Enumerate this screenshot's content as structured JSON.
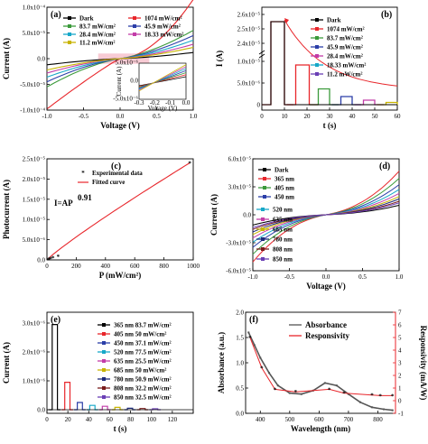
{
  "chart_data": [
    {
      "panel": "(a)",
      "type": "line",
      "xlabel": "Voltage (V)",
      "ylabel": "Current (A)",
      "xlim": [
        -1.0,
        1.0
      ],
      "ylim": [
        -0.0001,
        0.0001
      ],
      "xticks": [
        "-1.0",
        "-0.5",
        "0.0",
        "0.5",
        "1.0"
      ],
      "yticks": [
        "-1.0x10⁻⁴",
        "-5.0x10⁻⁵",
        "0.0",
        "5.0x10⁻⁵",
        "1.0x10⁻⁴"
      ],
      "legend": "top-left",
      "series": [
        {
          "name": "Dark",
          "color": "#000000",
          "x": [
            -1,
            -0.5,
            0,
            0.5,
            1
          ],
          "y": [
            -1.2e-05,
            -4e-06,
            0,
            4e-06,
            1.2e-05
          ]
        },
        {
          "name": "1074 mW/cm²",
          "color": "#e8262b",
          "x": [
            -1,
            -0.5,
            0,
            0.5,
            1
          ],
          "y": [
            -0.0001,
            -5e-05,
            -5e-06,
            3.5e-05,
            0.000115
          ]
        },
        {
          "name": "83.7 mW/cm²",
          "color": "#3b9a3b",
          "x": [
            -1,
            -0.5,
            0,
            0.5,
            1
          ],
          "y": [
            -5.5e-05,
            -2.2e-05,
            -1e-06,
            2e-05,
            5.5e-05
          ]
        },
        {
          "name": "45.9 mW/cm²",
          "color": "#2b3ea8",
          "x": [
            -1,
            -0.5,
            0,
            0.5,
            1
          ],
          "y": [
            -4.5e-05,
            -1.8e-05,
            -1e-06,
            1.6e-05,
            4.5e-05
          ]
        },
        {
          "name": "28.4 mW/cm²",
          "color": "#17a8c8",
          "x": [
            -1,
            -0.5,
            0,
            0.5,
            1
          ],
          "y": [
            -3.6e-05,
            -1.4e-05,
            -5e-07,
            1.3e-05,
            3.6e-05
          ]
        },
        {
          "name": "18.33 mW/cm²",
          "color": "#c23ca8",
          "x": [
            -1,
            -0.5,
            0,
            0.5,
            1
          ],
          "y": [
            -2.8e-05,
            -1.1e-05,
            -5e-07,
            1e-05,
            2.8e-05
          ]
        },
        {
          "name": "11.2 mW/cm²",
          "color": "#c8b400",
          "x": [
            -1,
            -0.5,
            0,
            0.5,
            1
          ],
          "y": [
            -2.2e-05,
            -8e-06,
            0,
            8e-06,
            2.2e-05
          ]
        }
      ],
      "inset": {
        "xlabel": "Voltage (V)",
        "ylabel": "Current (A)",
        "xticks": [
          "-0.3",
          "-0.2",
          "-0.1",
          "0.0"
        ],
        "yticks": [
          "-5.0x10⁻⁶",
          "0.0",
          "5.0x10⁻⁶"
        ]
      }
    },
    {
      "panel": "(b)",
      "type": "line",
      "xlabel": "t (s)",
      "ylabel": "I (A)",
      "xlim": [
        0,
        60
      ],
      "xticks": [
        "0",
        "10",
        "20",
        "30",
        "40",
        "50",
        "60"
      ],
      "yticks": [
        "0",
        "5.0x10⁻⁶",
        "1.0x10⁻⁵",
        "2.4x10⁻⁵",
        "2.5x10⁻⁵",
        "2.6x10⁻⁵"
      ],
      "legend": "top-right",
      "series": [
        {
          "name": "Dark",
          "color": "#000000",
          "on": [
            4,
            10
          ],
          "level": "high"
        },
        {
          "name": "1074 mW/cm²",
          "color": "#e8262b",
          "on": [
            4,
            10
          ],
          "level": "high"
        },
        {
          "name": "83.7 mW/cm²",
          "color": "#e8262b",
          "on": [
            15,
            21
          ],
          "level": 8.8e-06
        },
        {
          "name": "45.9 mW/cm²",
          "color": "#3b9a3b",
          "on": [
            25,
            30
          ],
          "level": 3.5e-06
        },
        {
          "name": "28.4 mW/cm²",
          "color": "#2b3ea8",
          "on": [
            35,
            40
          ],
          "level": 1.8e-06
        },
        {
          "name": "18.33 mW/cm²",
          "color": "#c23ca8",
          "on": [
            45,
            50
          ],
          "level": 1e-06
        },
        {
          "name": "11.2 mW/cm²",
          "color": "#c8b400",
          "on": [
            55,
            60
          ],
          "level": 5e-07
        }
      ]
    },
    {
      "panel": "(c)",
      "type": "scatter",
      "xlabel": "P (mW/cm²)",
      "ylabel": "Photocurrent (A)",
      "xlim": [
        0,
        1100
      ],
      "ylim": [
        0,
        2.5e-05
      ],
      "xticks": [
        "0",
        "200",
        "400",
        "600",
        "800",
        "1000"
      ],
      "yticks": [
        "0.0",
        "5.0x10⁻⁶",
        "1.0x10⁻⁵",
        "1.5x10⁻⁵",
        "2.0x10⁻⁵",
        "2.5x10⁻⁵"
      ],
      "legend": "top-left",
      "annotation": "I=AP",
      "annotation_exp": "0.91",
      "series": [
        {
          "name": "Experimental data",
          "color": "#e8262b",
          "x": [
            11.2,
            18.33,
            28.4,
            45.9,
            83.7,
            1074
          ],
          "y": [
            1.1e-07,
            2e-07,
            3e-07,
            5.2e-07,
            9e-07,
            2.4e-05
          ]
        },
        {
          "name": "Fitted curve",
          "color": "#e8262b"
        }
      ]
    },
    {
      "panel": "(d)",
      "type": "line",
      "xlabel": "Voltage (V)",
      "ylabel": "Current (A)",
      "xlim": [
        -1.0,
        1.0
      ],
      "ylim": [
        -6e-05,
        6e-05
      ],
      "xticks": [
        "-1.0",
        "-0.5",
        "0.0",
        "0.5",
        "1.0"
      ],
      "yticks": [
        "-6.0x10⁻⁵",
        "-3.0x10⁻⁵",
        "0.0",
        "3.0x10⁻⁵",
        "6.0x10⁻⁵"
      ],
      "legend": "left",
      "series": [
        {
          "name": "Dark",
          "color": "#000000",
          "amp": 1.2e-05
        },
        {
          "name": "365 nm",
          "color": "#e8262b",
          "amp": 5.5e-05
        },
        {
          "name": "405 nm",
          "color": "#3b9a3b",
          "amp": 4.6e-05
        },
        {
          "name": "450 nm",
          "color": "#2b3ea8",
          "amp": 3.8e-05
        },
        {
          "name": "520 nm",
          "color": "#17a8c8",
          "amp": 3.2e-05
        },
        {
          "name": "635 nm",
          "color": "#c23ca8",
          "amp": 2.7e-05
        },
        {
          "name": "685 nm",
          "color": "#c8b400",
          "amp": 2.3e-05
        },
        {
          "name": "780 nm",
          "color": "#1c2a7a",
          "amp": 2e-05
        },
        {
          "name": "808 nm",
          "color": "#7a1c1c",
          "amp": 1.7e-05
        },
        {
          "name": "850 nm",
          "color": "#6a3fb5",
          "amp": 1.5e-05
        }
      ]
    },
    {
      "panel": "(e)",
      "type": "line",
      "xlabel": "t (s)",
      "ylabel": "Current (A)",
      "xlim": [
        0,
        140
      ],
      "ylim": [
        0,
        3e-06
      ],
      "xticks": [
        "0",
        "20",
        "40",
        "60",
        "80",
        "100",
        "120"
      ],
      "yticks": [
        "0.0",
        "1.0x10⁻⁶",
        "2.0x10⁻⁶",
        "3.0x10⁻⁶"
      ],
      "legend": "top-right",
      "series": [
        {
          "name": "365 nm  83.7 mW/cm²",
          "color": "#000000",
          "start": 5,
          "level": 2.95e-06
        },
        {
          "name": "405 nm  50 mW/cm²",
          "color": "#e8262b",
          "start": 17,
          "level": 9.5e-07
        },
        {
          "name": "450 nm  37.1 mW/cm²",
          "color": "#2b3ea8",
          "start": 29,
          "level": 2.5e-07
        },
        {
          "name": "520 nm  77.5 mW/cm²",
          "color": "#17a8c8",
          "start": 41,
          "level": 1.5e-07
        },
        {
          "name": "635 nm  25.5 mW/cm²",
          "color": "#c23ca8",
          "start": 53,
          "level": 1.2e-07
        },
        {
          "name": "685 nm  50 mW/cm²",
          "color": "#c8b400",
          "start": 65,
          "level": 8e-08
        },
        {
          "name": "780 nm  50.9 mW/cm²",
          "color": "#1c2a7a",
          "start": 77,
          "level": 5e-08
        },
        {
          "name": "808 nm  32.2 mW/cm²",
          "color": "#7a1c1c",
          "start": 89,
          "level": 4e-08
        },
        {
          "name": "850 nm  32.5 mW/cm²",
          "color": "#6a3fb5",
          "start": 101,
          "level": 3e-08
        }
      ]
    },
    {
      "panel": "(f)",
      "type": "line",
      "xlabel": "Wavelength (nm)",
      "ylabel": "Absorbance (a.u.)",
      "ylabel_right": "Responsivity (mA/W)",
      "xlim": [
        350,
        860
      ],
      "ylim": [
        0.0,
        2.0
      ],
      "ylim_right": [
        -1,
        7
      ],
      "xticks": [
        "400",
        "500",
        "600",
        "700",
        "800"
      ],
      "yticks": [
        "0.0",
        "0.5",
        "1.0",
        "1.5",
        "2.0"
      ],
      "yticks_right": [
        "-1",
        "0",
        "1",
        "2",
        "3",
        "4",
        "5",
        "6",
        "7"
      ],
      "legend": "top-right",
      "series": [
        {
          "name": "Absorbance",
          "color": "#555555",
          "x": [
            360,
            380,
            400,
            430,
            460,
            500,
            540,
            580,
            620,
            660,
            700,
            740,
            780,
            820,
            850
          ],
          "y": [
            1.6,
            1.35,
            1.1,
            0.8,
            0.55,
            0.4,
            0.38,
            0.45,
            0.6,
            0.55,
            0.38,
            0.22,
            0.12,
            0.08,
            0.06
          ]
        },
        {
          "name": "Responsivity",
          "color": "#e8262b",
          "x": [
            365,
            405,
            450,
            520,
            635,
            685,
            780,
            808,
            850
          ],
          "y": [
            5.0,
            2.6,
            0.9,
            0.7,
            0.9,
            0.6,
            0.45,
            0.4,
            0.4
          ]
        }
      ]
    }
  ]
}
